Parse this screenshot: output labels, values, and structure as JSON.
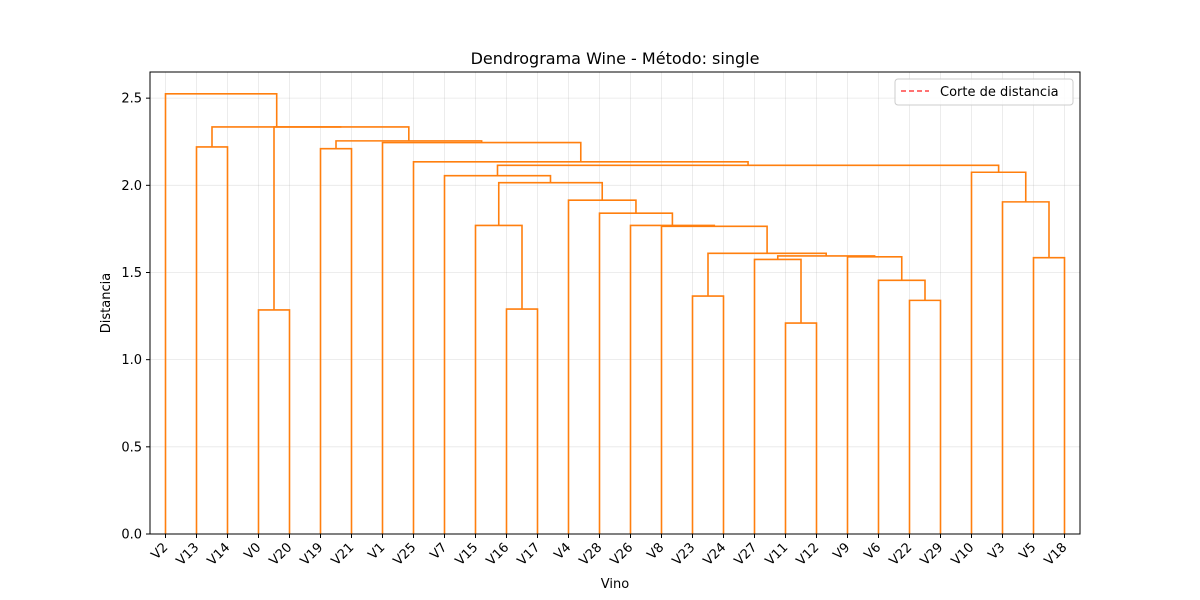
{
  "chart_data": {
    "type": "dendrogram",
    "title": "Dendrograma Wine - Método: single",
    "xlabel": "Vino",
    "ylabel": "Distancia",
    "ylim": [
      0,
      2.65
    ],
    "yticks": [
      "0.0",
      "0.5",
      "1.0",
      "1.5",
      "2.0",
      "2.5"
    ],
    "grid": true,
    "legend": {
      "placement": "top-right",
      "entries": [
        {
          "label": "Corte de distancia",
          "style": "dashed",
          "color": "#ff4444"
        }
      ]
    },
    "line_color": "#ff7f0e",
    "leaves": [
      "V2",
      "V13",
      "V14",
      "V0",
      "V20",
      "V19",
      "V21",
      "V1",
      "V25",
      "V7",
      "V15",
      "V16",
      "V17",
      "V4",
      "V28",
      "V26",
      "V8",
      "V23",
      "V24",
      "V27",
      "V11",
      "V12",
      "V9",
      "V6",
      "V22",
      "V29",
      "V10",
      "V3",
      "V5",
      "V18"
    ],
    "merges": [
      {
        "left": "V11",
        "right": "V12",
        "height": 1.21
      },
      {
        "left": "V0",
        "right": "V20",
        "height": 1.285
      },
      {
        "left": "V16",
        "right": "V17",
        "height": 1.29
      },
      {
        "left": "V22",
        "right": "V29",
        "height": 1.34
      },
      {
        "left": "V23",
        "right": "V24",
        "height": 1.365
      },
      {
        "left": "V6",
        "right": "V22+V29",
        "height": 1.455
      },
      {
        "left": "V27",
        "right": "V11+V12",
        "height": 1.575
      },
      {
        "left": "V5",
        "right": "V18",
        "height": 1.585
      },
      {
        "left": "V9",
        "right": "V6+V22+V29",
        "height": 1.59
      },
      {
        "left": "V27+V11+V12",
        "right": "V9+V6+V22+V29",
        "height": 1.595
      },
      {
        "left": "V23+V24",
        "right": "V27+V11+V12+V9+V6+V22+V29",
        "height": 1.61
      },
      {
        "left": "V8",
        "right": "V23..V29",
        "height": 1.765
      },
      {
        "left": "V15",
        "right": "V16+V17",
        "height": 1.77
      },
      {
        "left": "V26",
        "right": "V8..V29",
        "height": 1.77
      },
      {
        "left": "V28",
        "right": "V26..V29",
        "height": 1.84
      },
      {
        "left": "V3",
        "right": "V5+V18",
        "height": 1.905
      },
      {
        "left": "V4",
        "right": "V28..V29",
        "height": 1.915
      },
      {
        "left": "V15+V16+V17",
        "right": "V4..V29",
        "height": 2.015
      },
      {
        "left": "V7",
        "right": "V15..V29",
        "height": 2.055
      },
      {
        "left": "V10",
        "right": "V3+V5+V18",
        "height": 2.075
      },
      {
        "left": "V7..V29",
        "right": "V10+V3+V5+V18",
        "height": 2.115
      },
      {
        "left": "V25",
        "right": "V7..V18",
        "height": 2.135
      },
      {
        "left": "V19",
        "right": "V21",
        "height": 2.21
      },
      {
        "left": "V13",
        "right": "V14",
        "height": 2.22
      },
      {
        "left": "V1",
        "right": "V25..V18",
        "height": 2.245
      },
      {
        "left": "V19+V21",
        "right": "V1..V18",
        "height": 2.255
      },
      {
        "left": "V0+V20",
        "right": "V19..V18",
        "height": 2.335
      },
      {
        "left": "V13+V14",
        "right": "V0..V18",
        "height": 2.335
      },
      {
        "left": "V2",
        "right": "V13..V18",
        "height": 2.525
      }
    ]
  }
}
